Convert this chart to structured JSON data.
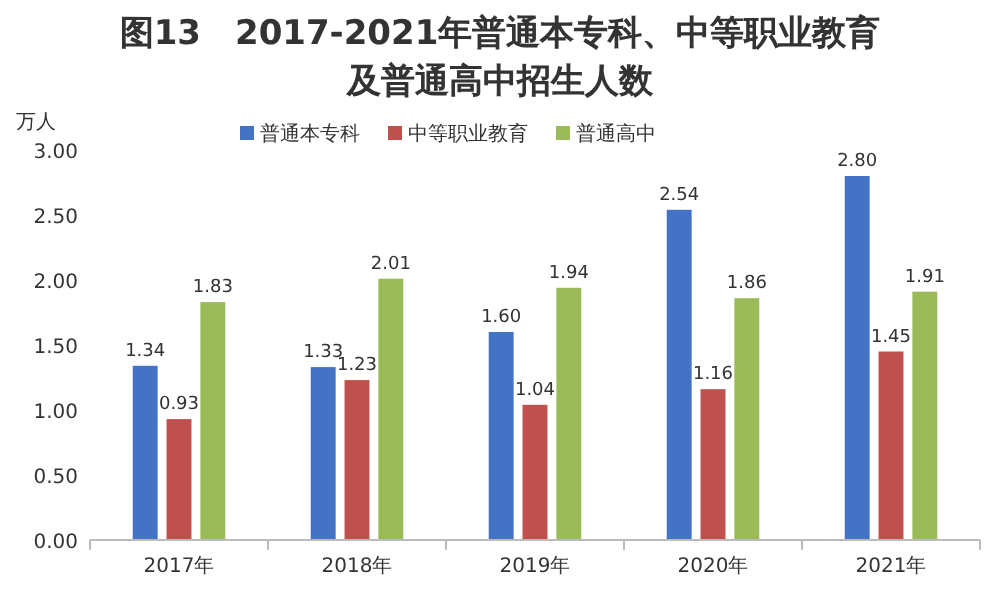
{
  "chart_data": {
    "type": "bar",
    "title": "图13　2017-2021年普通本专科、中等职业教育及普通高中招生人数",
    "ylabel": "万人",
    "categories": [
      "2017年",
      "2018年",
      "2019年",
      "2020年",
      "2021年"
    ],
    "series": [
      {
        "name": "普通本专科",
        "color": "#4472c4",
        "values": [
          1.34,
          1.33,
          1.6,
          2.54,
          2.8
        ],
        "value_labels": [
          "1.34",
          "1.33",
          "1.60",
          "2.54",
          "2.80"
        ]
      },
      {
        "name": "中等职业教育",
        "color": "#c0504d",
        "values": [
          0.93,
          1.23,
          1.04,
          1.16,
          1.45
        ],
        "value_labels": [
          "0.93",
          "1.23",
          "1.04",
          "1.16",
          "1.45"
        ]
      },
      {
        "name": "普通高中",
        "color": "#9bbb59",
        "values": [
          1.83,
          2.01,
          1.94,
          1.86,
          1.91
        ],
        "value_labels": [
          "1.83",
          "2.01",
          "1.94",
          "1.86",
          "1.91"
        ]
      }
    ],
    "ylim": [
      0,
      3
    ],
    "yticks": [
      {
        "value": 0,
        "label": "0.00"
      },
      {
        "value": 0.5,
        "label": "0.50"
      },
      {
        "value": 1,
        "label": "1.00"
      },
      {
        "value": 1.5,
        "label": "1.50"
      },
      {
        "value": 2,
        "label": "2.00"
      },
      {
        "value": 2.5,
        "label": "2.50"
      },
      {
        "value": 3,
        "label": "3.00"
      }
    ],
    "legend": "top",
    "grid": false
  }
}
